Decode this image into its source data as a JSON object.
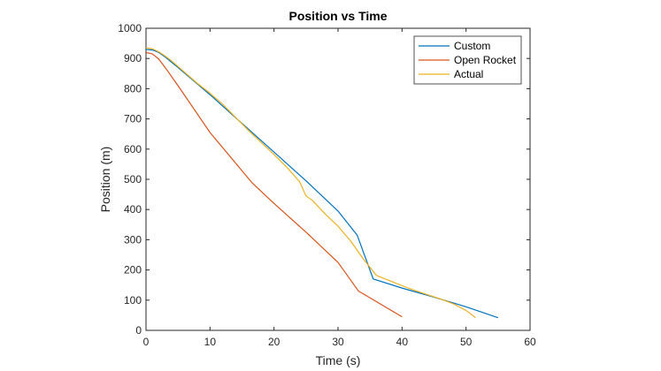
{
  "chart_data": {
    "type": "line",
    "title": "Position vs Time",
    "xlabel": "Time (s)",
    "ylabel": "Position (m)",
    "xlim": [
      0,
      60
    ],
    "ylim": [
      0,
      1000
    ],
    "xticks": [
      0,
      10,
      20,
      30,
      40,
      50,
      60
    ],
    "yticks": [
      0,
      100,
      200,
      300,
      400,
      500,
      600,
      700,
      800,
      900,
      1000
    ],
    "grid": false,
    "legend_position": "top-right",
    "series": [
      {
        "name": "Custom",
        "color": "#0072BD",
        "points": [
          [
            0,
            930
          ],
          [
            1,
            928
          ],
          [
            2,
            920
          ],
          [
            3,
            905
          ],
          [
            5,
            870
          ],
          [
            10,
            780
          ],
          [
            15,
            685
          ],
          [
            20,
            590
          ],
          [
            25,
            495
          ],
          [
            30,
            395
          ],
          [
            33,
            315
          ],
          [
            35.5,
            170
          ],
          [
            40,
            140
          ],
          [
            45,
            110
          ],
          [
            50,
            78
          ],
          [
            55,
            42
          ]
        ]
      },
      {
        "name": "Open Rocket",
        "color": "#D95319",
        "points": [
          [
            0,
            920
          ],
          [
            1,
            915
          ],
          [
            2,
            898
          ],
          [
            3,
            870
          ],
          [
            5,
            810
          ],
          [
            10,
            655
          ],
          [
            16.5,
            490
          ],
          [
            20,
            420
          ],
          [
            25,
            325
          ],
          [
            30,
            225
          ],
          [
            33.2,
            130
          ],
          [
            36,
            95
          ],
          [
            40,
            45
          ]
        ]
      },
      {
        "name": "Actual",
        "color": "#EDB120",
        "points": [
          [
            0,
            935
          ],
          [
            1,
            932
          ],
          [
            2,
            922
          ],
          [
            3,
            908
          ],
          [
            4,
            892
          ],
          [
            6,
            855
          ],
          [
            8,
            818
          ],
          [
            10,
            785
          ],
          [
            12,
            748
          ],
          [
            14,
            705
          ],
          [
            16,
            662
          ],
          [
            18,
            622
          ],
          [
            20,
            582
          ],
          [
            22,
            540
          ],
          [
            24,
            492
          ],
          [
            25,
            445
          ],
          [
            26,
            430
          ],
          [
            28,
            385
          ],
          [
            30,
            345
          ],
          [
            32,
            295
          ],
          [
            34,
            235
          ],
          [
            36,
            182
          ],
          [
            38,
            165
          ],
          [
            40,
            148
          ],
          [
            42,
            132
          ],
          [
            44,
            118
          ],
          [
            46,
            104
          ],
          [
            48,
            88
          ],
          [
            50,
            66
          ],
          [
            51.5,
            42
          ]
        ]
      }
    ]
  }
}
